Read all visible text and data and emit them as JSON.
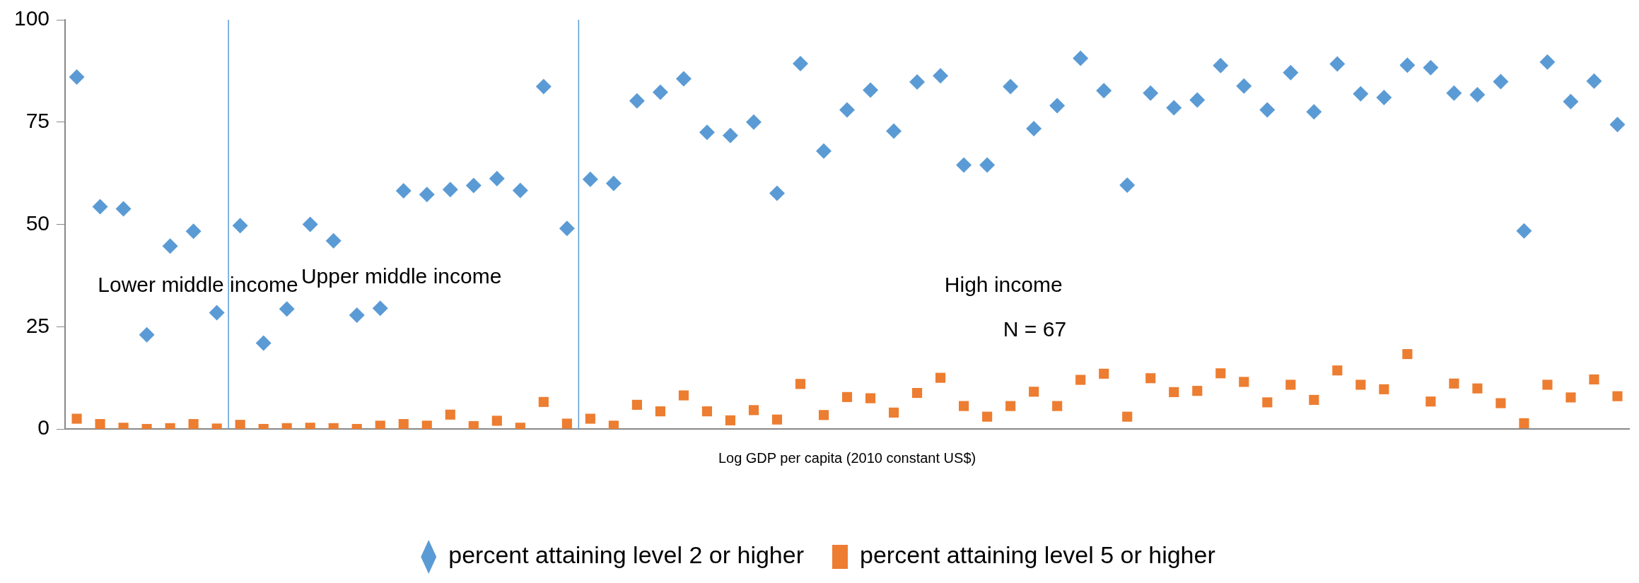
{
  "chart_data": {
    "type": "scatter",
    "xlabel": "Log GDP per capita (2010 constant US$)",
    "categories": [
      null,
      null,
      null,
      null,
      null,
      null,
      null,
      null,
      null,
      null,
      null,
      null,
      null,
      null,
      null,
      null,
      null,
      null,
      null,
      null,
      null,
      null,
      null,
      null,
      null,
      null,
      null,
      null,
      null,
      null,
      null,
      null,
      null,
      null,
      null,
      null,
      null,
      null,
      null,
      null,
      null,
      null,
      null,
      null,
      null,
      null,
      null,
      null,
      null,
      null,
      null,
      null,
      null,
      null,
      null,
      null,
      null,
      null,
      null,
      null,
      null,
      null,
      null,
      null,
      null,
      null,
      null
    ],
    "series": [
      {
        "name": "percent attaining level 2 or higher",
        "color": "#5b9bd5",
        "marker": "diamond",
        "values": [
          86,
          54.3,
          53.8,
          23,
          44.7,
          48.3,
          28.4,
          49.7,
          21,
          29.3,
          50,
          46,
          27.8,
          29.5,
          58.2,
          57.3,
          58.5,
          59.5,
          61.2,
          58.3,
          83.7,
          49,
          61,
          60,
          80.2,
          82.3,
          85.6,
          72.5,
          71.7,
          75,
          57.6,
          89.3,
          67.9,
          78,
          82.8,
          72.8,
          84.8,
          86.3,
          64.5,
          64.5,
          83.7,
          73.4,
          79,
          90.6,
          82.7,
          59.6,
          82.1,
          78.5,
          80.4,
          88.8,
          83.8,
          78,
          87.1,
          77.5,
          89.2,
          81.9,
          81,
          88.9,
          88.3,
          82.1,
          81.7,
          84.9,
          48.4,
          89.7,
          80,
          85,
          74.4
        ]
      },
      {
        "name": "percent attaining level 5 or higher",
        "color": "#ed7d31",
        "marker": "square",
        "values": [
          2.5,
          1.2,
          0.3,
          0,
          0.2,
          1.2,
          0.1,
          1,
          0,
          0.2,
          0.3,
          0.2,
          0,
          0.8,
          1.2,
          0.8,
          3.5,
          0.7,
          2,
          0.3,
          6.6,
          1.3,
          2.5,
          0.8,
          5.9,
          4.3,
          8.2,
          4.3,
          2.1,
          4.6,
          2.3,
          11,
          3.4,
          7.8,
          7.5,
          4,
          8.8,
          12.5,
          5.6,
          3,
          5.6,
          9.1,
          5.6,
          12,
          13.5,
          3,
          12.4,
          9,
          9.3,
          13.6,
          11.5,
          6.5,
          10.8,
          7.1,
          14.3,
          10.8,
          9.7,
          18.3,
          6.7,
          11.1,
          9.9,
          6.3,
          1.4,
          10.8,
          7.7,
          12.1,
          8
        ]
      }
    ],
    "ylim": [
      0,
      100
    ],
    "yticks": [
      0,
      25,
      50,
      75,
      100
    ],
    "tick_labels": "y",
    "grid": false,
    "legend": "bottom",
    "annotations": [
      "Lower middle income",
      "Upper middle income",
      "High income",
      "N = 67"
    ]
  }
}
